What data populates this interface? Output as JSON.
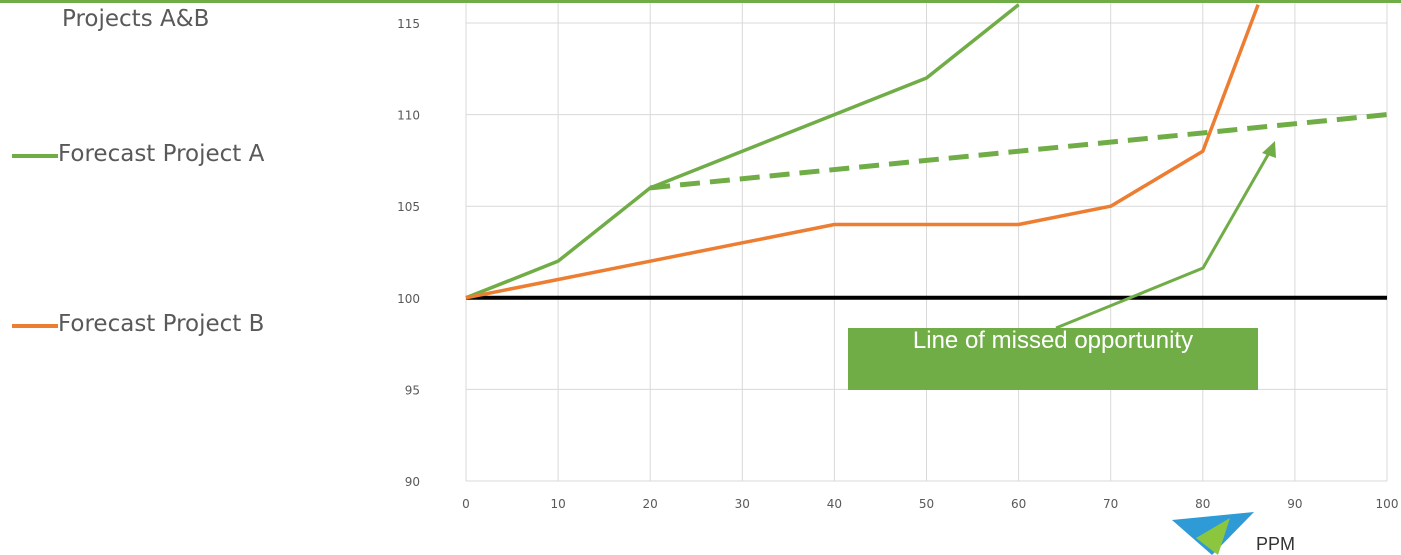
{
  "legend": {
    "title": "Projects A&B",
    "items": [
      {
        "label": "Forecast Project A",
        "color": "#70ad47"
      },
      {
        "label": "Forecast Project B",
        "color": "#ed7d31"
      }
    ]
  },
  "annotation": {
    "text": "Line of missed opportunity",
    "color": "#70ad47"
  },
  "logo": {
    "text": "PPM"
  },
  "chart_data": {
    "type": "line",
    "title": "",
    "xlabel": "",
    "ylabel": "",
    "xlim": [
      0,
      100
    ],
    "ylim": [
      90,
      115
    ],
    "grid": true,
    "x_ticks": [
      0,
      10,
      20,
      30,
      40,
      50,
      60,
      70,
      80,
      90,
      100
    ],
    "y_ticks": [
      90,
      95,
      100,
      105,
      110,
      115
    ],
    "series": [
      {
        "name": "Forecast Project A",
        "color": "#70ad47",
        "x": [
          0,
          10,
          20,
          30,
          40,
          50,
          60
        ],
        "y": [
          100,
          102,
          106,
          108,
          110,
          112,
          116
        ]
      },
      {
        "name": "Forecast Project B",
        "color": "#ed7d31",
        "x": [
          0,
          10,
          20,
          30,
          40,
          50,
          60,
          70,
          80,
          86
        ],
        "y": [
          100,
          101,
          102,
          103,
          104,
          104,
          104,
          105,
          108,
          116
        ]
      }
    ],
    "reference_lines": [
      {
        "color": "#000000",
        "style": "solid",
        "x": [
          0,
          100
        ],
        "y": [
          100,
          100
        ]
      },
      {
        "color": "#70ad47",
        "style": "dashed",
        "x": [
          20,
          100
        ],
        "y": [
          106,
          110
        ]
      }
    ]
  }
}
